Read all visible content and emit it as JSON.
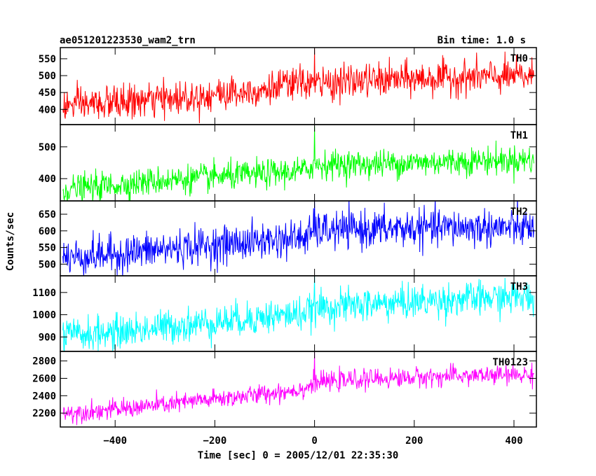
{
  "header": {
    "title": "ae051201223530_wam2_trn",
    "bin_time": "Bin time: 1.0 s"
  },
  "colors": {
    "frame": "#000000",
    "background": "#ffffff"
  },
  "chart_data": {
    "type": "line",
    "shared_x": {
      "label": "Time [sec] 0 = 2005/12/01 22:35:30",
      "range": [
        -510,
        445
      ],
      "ticks": [
        -400,
        -200,
        0,
        200,
        400
      ],
      "tick_labels": [
        "−400",
        "−200",
        "0",
        "200",
        "400"
      ],
      "sample_step": 1
    },
    "ylabel": "Counts/sec",
    "panels": [
      {
        "name": "TH0",
        "color": "#ff0000",
        "ylim": [
          355,
          583
        ],
        "yticks": [
          400,
          450,
          500,
          550
        ],
        "trend": [
          [
            -505,
            410
          ],
          [
            -400,
            420
          ],
          [
            -300,
            430
          ],
          [
            -100,
            460
          ],
          [
            -20,
            480
          ],
          [
            0,
            475
          ],
          [
            100,
            485
          ],
          [
            300,
            495
          ],
          [
            440,
            498
          ]
        ],
        "noise_sd": 25,
        "spike": {
          "x": 0,
          "y": 580
        }
      },
      {
        "name": "TH1",
        "color": "#00ff00",
        "ylim": [
          330,
          570
        ],
        "yticks": [
          400,
          500
        ],
        "trend": [
          [
            -505,
            365
          ],
          [
            -400,
            380
          ],
          [
            -300,
            395
          ],
          [
            -100,
            415
          ],
          [
            -20,
            425
          ],
          [
            0,
            445
          ],
          [
            100,
            445
          ],
          [
            300,
            455
          ],
          [
            440,
            460
          ]
        ],
        "noise_sd": 22,
        "spike": {
          "x": 0,
          "y": 565
        }
      },
      {
        "name": "TH2",
        "color": "#0000ff",
        "ylim": [
          465,
          690
        ],
        "yticks": [
          500,
          550,
          600,
          650
        ],
        "trend": [
          [
            -505,
            520
          ],
          [
            -400,
            530
          ],
          [
            -300,
            545
          ],
          [
            -100,
            570
          ],
          [
            -20,
            580
          ],
          [
            0,
            600
          ],
          [
            100,
            605
          ],
          [
            300,
            610
          ],
          [
            440,
            608
          ]
        ],
        "noise_sd": 28,
        "spike": {
          "x": 0,
          "y": 688
        }
      },
      {
        "name": "TH3",
        "color": "#00ffff",
        "ylim": [
          835,
          1175
        ],
        "yticks": [
          900,
          1000,
          1100
        ],
        "trend": [
          [
            -505,
            905
          ],
          [
            -400,
            920
          ],
          [
            -300,
            945
          ],
          [
            -100,
            990
          ],
          [
            -20,
            1005
          ],
          [
            0,
            1030
          ],
          [
            100,
            1045
          ],
          [
            300,
            1070
          ],
          [
            440,
            1080
          ]
        ],
        "noise_sd": 38,
        "spike": {
          "x": 0,
          "y": 1172
        }
      },
      {
        "name": "TH0123",
        "color": "#ff00ff",
        "ylim": [
          2040,
          2910
        ],
        "yticks": [
          2200,
          2400,
          2600,
          2800
        ],
        "trend": [
          [
            -505,
            2200
          ],
          [
            -400,
            2240
          ],
          [
            -300,
            2300
          ],
          [
            -100,
            2420
          ],
          [
            -20,
            2480
          ],
          [
            0,
            2550
          ],
          [
            100,
            2590
          ],
          [
            300,
            2630
          ],
          [
            440,
            2640
          ]
        ],
        "noise_sd": 55,
        "spike": {
          "x": 0,
          "y": 2900
        }
      }
    ]
  }
}
